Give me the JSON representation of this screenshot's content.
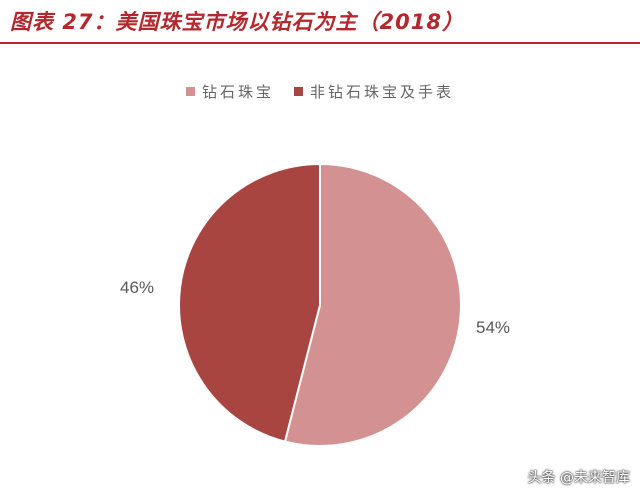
{
  "figure": {
    "title": "图表 27：美国珠宝市场以钻石为主（2018）"
  },
  "chart_data": {
    "type": "pie",
    "categories": [
      "钻石珠宝",
      "非钻石珠宝及手表"
    ],
    "values": [
      54,
      46
    ],
    "value_labels": [
      "54%",
      "46%"
    ],
    "colors": [
      "#d39291",
      "#a84541"
    ],
    "legend_position": "top"
  },
  "watermark": {
    "text": "头条 @未来智库"
  }
}
